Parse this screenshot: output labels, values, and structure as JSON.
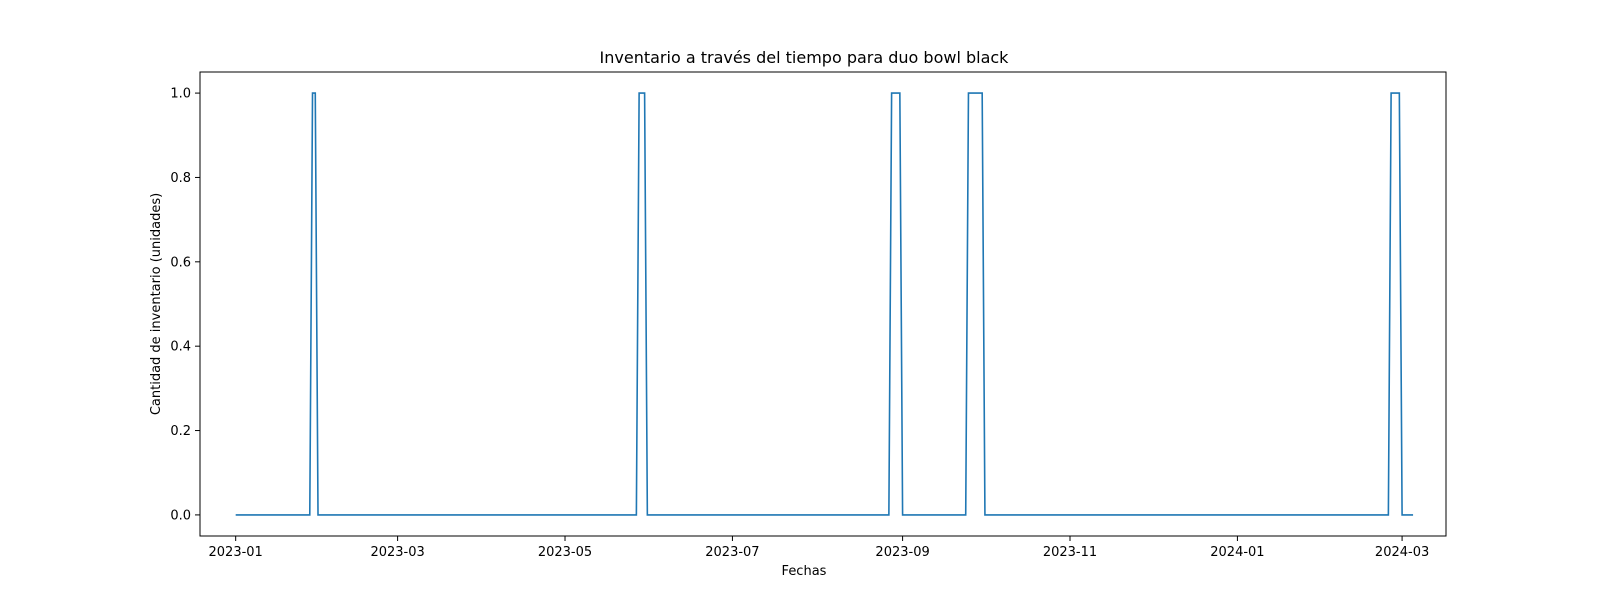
{
  "chart_data": {
    "type": "line",
    "title": "Inventario a través del tiempo para duo bowl black",
    "xlabel": "Fechas",
    "ylabel": "Cantidad de inventario (unidades)",
    "x_axis_type": "date",
    "xlim": [
      "2022-12-19",
      "2024-03-17"
    ],
    "ylim": [
      -0.05,
      1.05
    ],
    "grid": false,
    "x_ticks": [
      "2023-01",
      "2023-03",
      "2023-05",
      "2023-07",
      "2023-09",
      "2023-11",
      "2024-01",
      "2024-03"
    ],
    "y_ticks": [
      "0.0",
      "0.2",
      "0.4",
      "0.6",
      "0.8",
      "1.0"
    ],
    "series": [
      {
        "name": "",
        "color": "#1f77b4",
        "points": [
          [
            "2023-01-01",
            0
          ],
          [
            "2023-01-28",
            0
          ],
          [
            "2023-01-29",
            1
          ],
          [
            "2023-01-30",
            1
          ],
          [
            "2023-01-31",
            0
          ],
          [
            "2023-05-27",
            0
          ],
          [
            "2023-05-28",
            1
          ],
          [
            "2023-05-30",
            1
          ],
          [
            "2023-05-31",
            0
          ],
          [
            "2023-08-27",
            0
          ],
          [
            "2023-08-28",
            1
          ],
          [
            "2023-08-31",
            1
          ],
          [
            "2023-09-01",
            0
          ],
          [
            "2023-09-24",
            0
          ],
          [
            "2023-09-25",
            1
          ],
          [
            "2023-09-30",
            1
          ],
          [
            "2023-10-01",
            0
          ],
          [
            "2024-02-25",
            0
          ],
          [
            "2024-02-26",
            1
          ],
          [
            "2024-02-29",
            1
          ],
          [
            "2024-03-01",
            0
          ],
          [
            "2024-03-05",
            0
          ]
        ]
      }
    ]
  }
}
